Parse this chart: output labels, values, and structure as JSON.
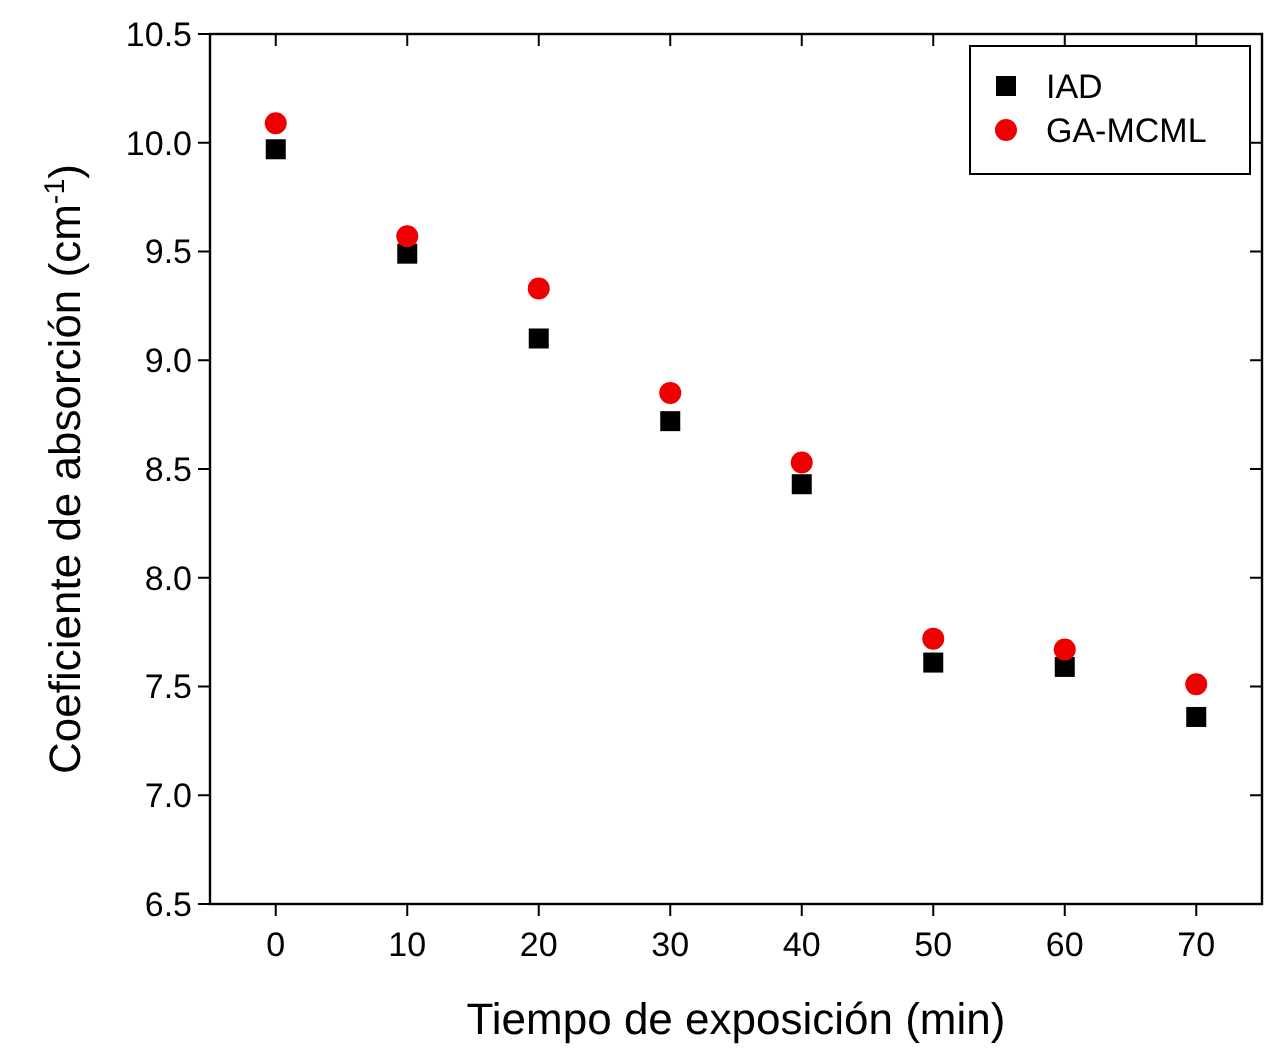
{
  "chart_data": {
    "type": "scatter",
    "xlabel": "Tiempo de exposición (min)",
    "ylabel": "Coeficiente de absorción (cm$^{-1}$)",
    "x": [
      0,
      10,
      20,
      30,
      40,
      50,
      60,
      70
    ],
    "series": [
      {
        "name": "IAD",
        "color": "#000000",
        "marker": "square",
        "values": [
          9.97,
          9.49,
          9.1,
          8.72,
          8.43,
          7.61,
          7.59,
          7.36
        ]
      },
      {
        "name": "GA-MCML",
        "color": "#ee0000",
        "marker": "circle",
        "values": [
          10.09,
          9.57,
          9.33,
          8.85,
          8.53,
          7.72,
          7.67,
          7.51
        ]
      }
    ],
    "xlim": [
      -5,
      75
    ],
    "xticks": [
      0,
      10,
      20,
      30,
      40,
      50,
      60,
      70
    ],
    "ylim": [
      6.5,
      10.5
    ],
    "yticks": [
      {
        "value": 6.5,
        "label": "6.5"
      },
      {
        "value": 7,
        "label": "7.0"
      },
      {
        "value": 7.5,
        "label": "7.5"
      },
      {
        "value": 8,
        "label": "8.0"
      },
      {
        "value": 8.5,
        "label": "8.5"
      },
      {
        "value": 9,
        "label": "9.0"
      },
      {
        "value": 9.5,
        "label": "9.5"
      },
      {
        "value": 10,
        "label": "10.0"
      },
      {
        "value": 10.5,
        "label": "10.5"
      }
    ],
    "grid": false,
    "legend": "top right"
  }
}
